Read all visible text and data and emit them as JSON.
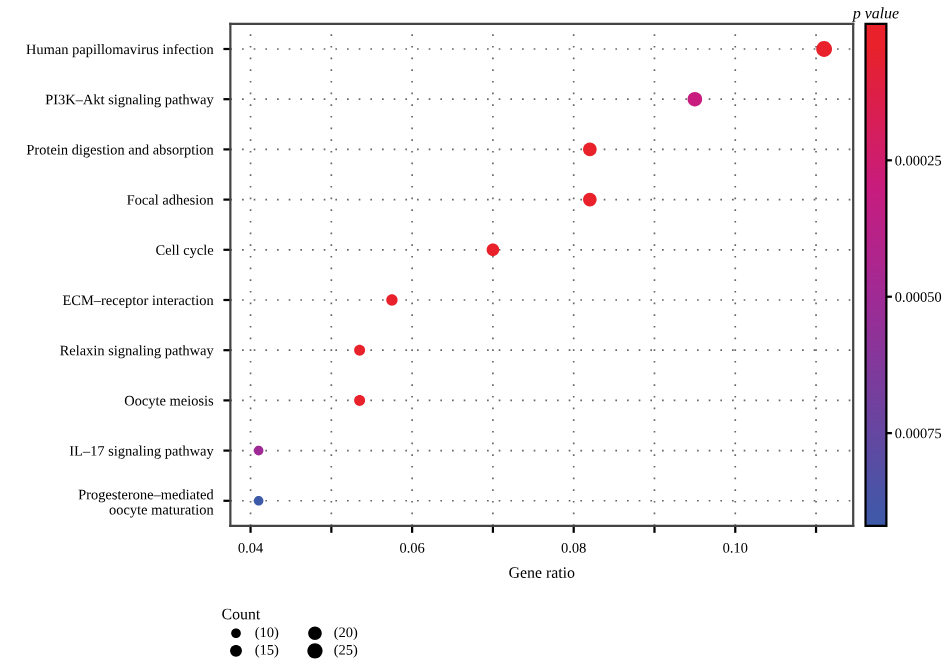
{
  "chart_data": {
    "type": "bubble",
    "xlabel": "Gene ratio",
    "clabel": "p value",
    "legend_title": "Count",
    "categories": [
      "Human papillomavirus infection",
      "PI3K–Akt signaling pathway",
      "Protein digestion and absorption",
      "Focal adhesion",
      "Cell cycle",
      "ECM–receptor interaction",
      "Relaxin signaling pathway",
      "Oocyte meiosis",
      "IL–17 signaling pathway",
      "Progesterone–mediated\noocyte maturation"
    ],
    "values": [
      0.111,
      0.095,
      0.082,
      0.082,
      0.07,
      0.0575,
      0.0535,
      0.0535,
      0.041,
      0.041
    ],
    "sizes": [
      27,
      23,
      20,
      20,
      17,
      14,
      13,
      13,
      10,
      10
    ],
    "size_legend": [
      {
        "value": 10,
        "label": "(10)"
      },
      {
        "value": 15,
        "label": "(15)"
      },
      {
        "value": 20,
        "label": "(20)"
      },
      {
        "value": 25,
        "label": "(25)"
      }
    ],
    "cvalues": [
      2e-05,
      0.0003,
      3e-05,
      3e-05,
      3e-05,
      4e-05,
      4e-05,
      4e-05,
      0.0005,
      0.0009
    ],
    "clim": [
      0,
      0.00092
    ],
    "cticks": [
      {
        "value": 0.00025,
        "label": "0.00025"
      },
      {
        "value": 0.0005,
        "label": "0.00050"
      },
      {
        "value": 0.00075,
        "label": "0.00075"
      }
    ],
    "colors": [
      "#e8212b",
      "#c81c7e",
      "#e8212b",
      "#e8212b",
      "#e8212b",
      "#e8212b",
      "#e8212b",
      "#e8212b",
      "#a02a95",
      "#3d5aa8"
    ],
    "xlim": [
      0.0375,
      0.1146
    ],
    "xticks": [
      {
        "value": 0.04,
        "label": "0.04"
      },
      {
        "value": 0.05,
        "label": null
      },
      {
        "value": 0.06,
        "label": "0.06"
      },
      {
        "value": 0.07,
        "label": null
      },
      {
        "value": 0.08,
        "label": "0.08"
      },
      {
        "value": 0.09,
        "label": null
      },
      {
        "value": 0.1,
        "label": "0.10"
      },
      {
        "value": 0.11,
        "label": null
      }
    ],
    "grid": true,
    "orientation": "horizontal"
  }
}
